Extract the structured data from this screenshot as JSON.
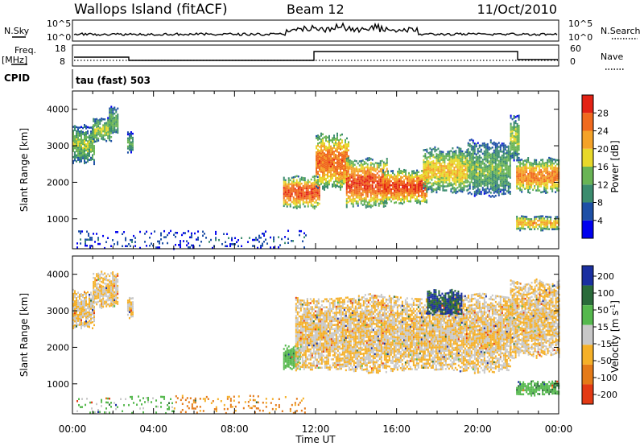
{
  "header": {
    "station": "Wallops Island (fitACF)",
    "beam": "Beam 12",
    "date": "11/Oct/2010"
  },
  "noise_panel": {
    "left_label": "N.Sky",
    "right_label": "N.Search",
    "ticks": [
      "10^5",
      "10^0"
    ]
  },
  "freq_panel": {
    "left_label": "Freq.",
    "unit_label": "[MHz]",
    "right_label": "Nave",
    "left_ticks": [
      "18",
      "8"
    ],
    "right_ticks": [
      "60",
      "0"
    ]
  },
  "cpid": {
    "label": "CPID",
    "value": "tau (fast) 503"
  },
  "colors": {
    "power": [
      "#0000ee",
      "#1d4fa6",
      "#3b8c6e",
      "#69b455",
      "#e8d82a",
      "#f4a228",
      "#f06a1e",
      "#e32214"
    ],
    "velocity": [
      "#1a2fa0",
      "#2a6b3a",
      "#55b84d",
      "#c8c8c8",
      "#f5b028",
      "#e47a18",
      "#e33a14"
    ]
  },
  "chart_data": [
    {
      "type": "heatmap",
      "title": "Power",
      "ylabel": "Slant Range [km]",
      "xlabel": "Time UT",
      "x_ticks": [
        "00:00",
        "04:00",
        "08:00",
        "12:00",
        "16:00",
        "20:00",
        "00:00"
      ],
      "xlim_hours": [
        0,
        24
      ],
      "y_ticks": [
        1000,
        2000,
        3000,
        4000
      ],
      "ylim": [
        180,
        4500
      ],
      "colorbar": {
        "label": "Power [dB]",
        "ticks": [
          4,
          8,
          12,
          16,
          20,
          24,
          28
        ],
        "range": [
          0,
          32
        ]
      },
      "echo_bands": [
        {
          "t_start": 0.0,
          "t_end": 1.1,
          "r_low": 2500,
          "r_high": 3600,
          "peak_db": 15
        },
        {
          "t_start": 1.0,
          "t_end": 1.9,
          "r_low": 3100,
          "r_high": 3800,
          "peak_db": 16
        },
        {
          "t_start": 1.8,
          "t_end": 2.2,
          "r_low": 3300,
          "r_high": 4100,
          "peak_db": 14
        },
        {
          "t_start": 2.7,
          "t_end": 3.0,
          "r_low": 2800,
          "r_high": 3400,
          "peak_db": 12
        },
        {
          "t_start": 10.4,
          "t_end": 12.2,
          "r_low": 1300,
          "r_high": 2200,
          "peak_db": 28
        },
        {
          "t_start": 12.0,
          "t_end": 13.6,
          "r_low": 1800,
          "r_high": 3400,
          "peak_db": 26
        },
        {
          "t_start": 13.5,
          "t_end": 15.5,
          "r_low": 1300,
          "r_high": 2700,
          "peak_db": 28
        },
        {
          "t_start": 15.3,
          "t_end": 17.5,
          "r_low": 1400,
          "r_high": 2400,
          "peak_db": 28
        },
        {
          "t_start": 17.3,
          "t_end": 19.5,
          "r_low": 1700,
          "r_high": 3000,
          "peak_db": 20
        },
        {
          "t_start": 19.5,
          "t_end": 21.6,
          "r_low": 1600,
          "r_high": 3200,
          "peak_db": 14
        },
        {
          "t_start": 21.6,
          "t_end": 22.0,
          "r_low": 2600,
          "r_high": 3900,
          "peak_db": 16
        },
        {
          "t_start": 21.9,
          "t_end": 24.0,
          "r_low": 1700,
          "r_high": 2700,
          "peak_db": 24
        },
        {
          "t_start": 21.9,
          "t_end": 24.0,
          "r_low": 700,
          "r_high": 1100,
          "peak_db": 22
        },
        {
          "t_start": 0.2,
          "t_end": 11.5,
          "r_low": 200,
          "r_high": 700,
          "peak_db": 6
        }
      ]
    },
    {
      "type": "heatmap",
      "title": "Velocity",
      "ylabel": "Slant Range [km]",
      "xlabel": "Time UT",
      "x_ticks": [
        "00:00",
        "04:00",
        "08:00",
        "12:00",
        "16:00",
        "20:00",
        "00:00"
      ],
      "xlim_hours": [
        0,
        24
      ],
      "y_ticks": [
        1000,
        2000,
        3000,
        4000
      ],
      "ylim": [
        180,
        4500
      ],
      "colorbar": {
        "label": "Velocity [m s^-1]",
        "ticks": [
          200,
          100,
          50,
          15,
          -15,
          -50,
          -100,
          -200
        ],
        "range": [
          -250,
          250
        ]
      },
      "echo_bands": [
        {
          "t_start": 0.0,
          "t_end": 1.1,
          "r_low": 2500,
          "r_high": 3600,
          "v": 0
        },
        {
          "t_start": 1.0,
          "t_end": 2.2,
          "r_low": 3100,
          "r_high": 4100,
          "v": 0
        },
        {
          "t_start": 2.7,
          "t_end": 3.0,
          "r_low": 2800,
          "r_high": 3400,
          "v": 0
        },
        {
          "t_start": 10.4,
          "t_end": 11.2,
          "r_low": 1400,
          "r_high": 2100,
          "v": 60
        },
        {
          "t_start": 11.0,
          "t_end": 21.6,
          "r_low": 1300,
          "r_high": 3500,
          "v": 0
        },
        {
          "t_start": 17.5,
          "t_end": 19.2,
          "r_low": 2900,
          "r_high": 3600,
          "v": 150
        },
        {
          "t_start": 21.6,
          "t_end": 24.0,
          "r_low": 1700,
          "r_high": 3900,
          "v": 0
        },
        {
          "t_start": 21.9,
          "t_end": 24.0,
          "r_low": 700,
          "r_high": 1100,
          "v": 60
        },
        {
          "t_start": 0.2,
          "t_end": 5.0,
          "r_low": 200,
          "r_high": 700,
          "v": 40
        },
        {
          "t_start": 5.0,
          "t_end": 11.5,
          "r_low": 200,
          "r_high": 700,
          "v": -40
        }
      ]
    }
  ]
}
